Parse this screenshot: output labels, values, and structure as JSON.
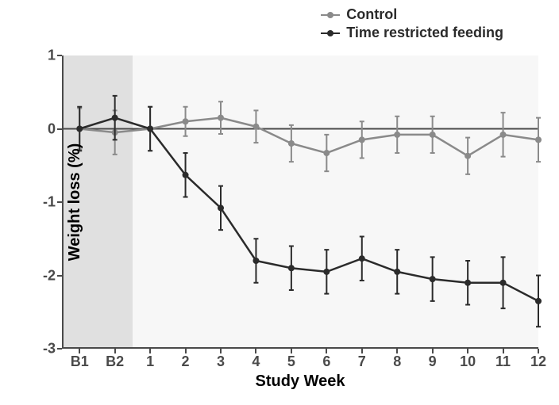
{
  "chart": {
    "type": "line-errorbar",
    "xlabel": "Study Week",
    "ylabel": "Weight loss (%)",
    "xlabel_fontsize": 20,
    "ylabel_fontsize": 20,
    "tick_fontsize": 18,
    "background_color": "#ffffff",
    "plot_background_color": "#f7f7f7",
    "baseline_shade_color": "#e0e0e0",
    "axis_color": "#4a4a4a",
    "zero_line_color": "#4a4a4a",
    "x_categories": [
      "B1",
      "B2",
      "1",
      "2",
      "3",
      "4",
      "5",
      "6",
      "7",
      "8",
      "9",
      "10",
      "11",
      "12"
    ],
    "x_positions": [
      0,
      1,
      2,
      3,
      4,
      5,
      6,
      7,
      8,
      9,
      10,
      11,
      12,
      13
    ],
    "baseline_end_x": 1.5,
    "xlim": [
      -0.5,
      13
    ],
    "ylim": [
      -3,
      1
    ],
    "yticks": [
      -3,
      -2,
      -1,
      0,
      1
    ],
    "line_width": 2.5,
    "marker_radius": 4,
    "errorbar_cap": 6,
    "errorbar_width": 2,
    "legend": {
      "items": [
        {
          "label": "Control",
          "color": "#8a8a8a"
        },
        {
          "label": "Time restricted feeding",
          "color": "#2b2b2b"
        }
      ],
      "fontsize": 18
    },
    "series": [
      {
        "name": "Control",
        "color": "#8a8a8a",
        "x": [
          0,
          1,
          2,
          3,
          4,
          5,
          6,
          7,
          8,
          9,
          10,
          11,
          12,
          13
        ],
        "y": [
          0.0,
          -0.05,
          0.0,
          0.1,
          0.15,
          0.03,
          -0.2,
          -0.33,
          -0.15,
          -0.08,
          -0.08,
          -0.37,
          -0.08,
          -0.15
        ],
        "err": [
          0.28,
          0.3,
          0.3,
          0.2,
          0.22,
          0.22,
          0.25,
          0.25,
          0.25,
          0.25,
          0.25,
          0.25,
          0.3,
          0.3
        ]
      },
      {
        "name": "Time restricted feeding",
        "color": "#2b2b2b",
        "x": [
          0,
          1,
          2,
          3,
          4,
          5,
          6,
          7,
          8,
          9,
          10,
          11,
          12,
          13
        ],
        "y": [
          0.0,
          0.15,
          0.0,
          -0.63,
          -1.08,
          -1.8,
          -1.9,
          -1.95,
          -1.77,
          -1.95,
          -2.05,
          -2.1,
          -2.1,
          -2.35
        ],
        "err": [
          0.3,
          0.3,
          0.3,
          0.3,
          0.3,
          0.3,
          0.3,
          0.3,
          0.3,
          0.3,
          0.3,
          0.3,
          0.35,
          0.35
        ]
      }
    ]
  }
}
